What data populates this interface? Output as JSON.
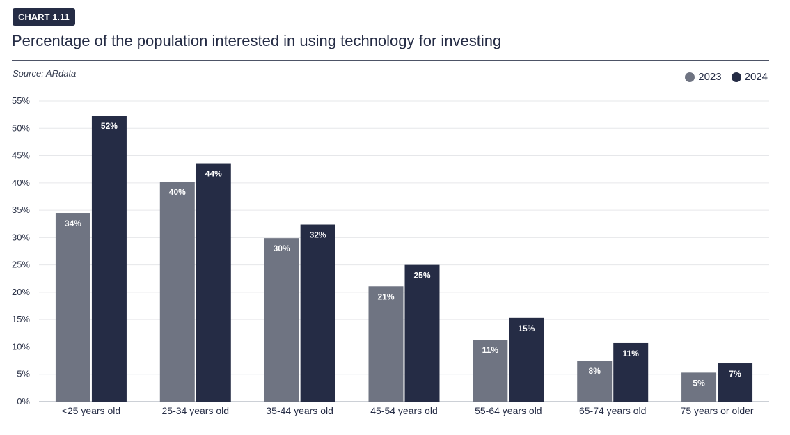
{
  "chart_label": "CHART 1.11",
  "chart_data": {
    "type": "bar",
    "title": "Percentage of the population interested in using technology for investing",
    "source": "Source: ARdata",
    "categories": [
      "<25 years old",
      "25-34 years old",
      "35-44 years old",
      "45-54 years old",
      "55-64 years old",
      "65-74 years old",
      "75 years or older"
    ],
    "series": [
      {
        "name": "2023",
        "color": "#6f7482",
        "values": [
          34,
          40,
          30,
          21,
          11,
          8,
          5
        ],
        "labels": [
          "34%",
          "40%",
          "30%",
          "21%",
          "11%",
          "8%",
          "5%"
        ],
        "bar_values": [
          34.5,
          40.2,
          29.9,
          21.1,
          11.3,
          7.5,
          5.3
        ]
      },
      {
        "name": "2024",
        "color": "#252c45",
        "values": [
          52,
          44,
          32,
          25,
          15,
          11,
          7
        ],
        "labels": [
          "52%",
          "44%",
          "32%",
          "25%",
          "15%",
          "11%",
          "7%"
        ],
        "bar_values": [
          52.3,
          43.6,
          32.4,
          25.0,
          15.3,
          10.7,
          7.0
        ]
      }
    ],
    "ylim": [
      0,
      55
    ],
    "yticks": [
      0,
      5,
      10,
      15,
      20,
      25,
      30,
      35,
      40,
      45,
      50,
      55
    ],
    "ytick_labels": [
      "0%",
      "5%",
      "10%",
      "15%",
      "20%",
      "25%",
      "30%",
      "35%",
      "40%",
      "45%",
      "50%",
      "55%"
    ],
    "grid": true,
    "legend": "top-right"
  }
}
